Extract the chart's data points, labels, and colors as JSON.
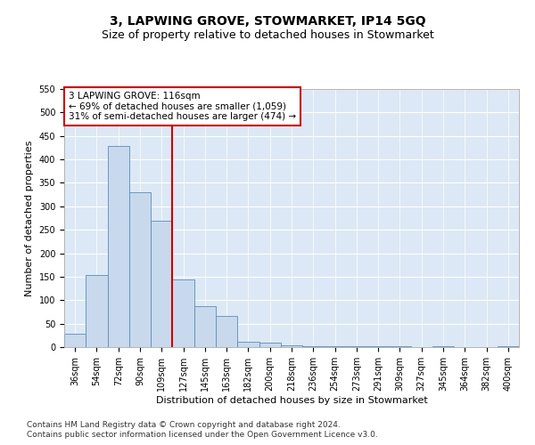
{
  "title1": "3, LAPWING GROVE, STOWMARKET, IP14 5GQ",
  "title2": "Size of property relative to detached houses in Stowmarket",
  "xlabel": "Distribution of detached houses by size in Stowmarket",
  "ylabel": "Number of detached properties",
  "bins": [
    "36sqm",
    "54sqm",
    "72sqm",
    "90sqm",
    "109sqm",
    "127sqm",
    "145sqm",
    "163sqm",
    "182sqm",
    "200sqm",
    "218sqm",
    "236sqm",
    "254sqm",
    "273sqm",
    "291sqm",
    "309sqm",
    "327sqm",
    "345sqm",
    "364sqm",
    "382sqm",
    "400sqm"
  ],
  "values": [
    28,
    153,
    428,
    330,
    270,
    145,
    88,
    67,
    12,
    9,
    4,
    1,
    1,
    1,
    1,
    1,
    0,
    1,
    0,
    0,
    1
  ],
  "bar_color": "#c8d9ed",
  "bar_edge_color": "#5b8db8",
  "vline_x": 4.5,
  "vline_color": "#cc0000",
  "annotation_box_text": "3 LAPWING GROVE: 116sqm\n← 69% of detached houses are smaller (1,059)\n31% of semi-detached houses are larger (474) →",
  "annotation_box_color": "#cc0000",
  "ylim": [
    0,
    550
  ],
  "yticks": [
    0,
    50,
    100,
    150,
    200,
    250,
    300,
    350,
    400,
    450,
    500,
    550
  ],
  "plot_bg_color": "#dce8f5",
  "footer1": "Contains HM Land Registry data © Crown copyright and database right 2024.",
  "footer2": "Contains public sector information licensed under the Open Government Licence v3.0.",
  "title1_fontsize": 10,
  "title2_fontsize": 9,
  "xlabel_fontsize": 8,
  "ylabel_fontsize": 8,
  "tick_fontsize": 7,
  "annotation_fontsize": 7.5,
  "footer_fontsize": 6.5
}
